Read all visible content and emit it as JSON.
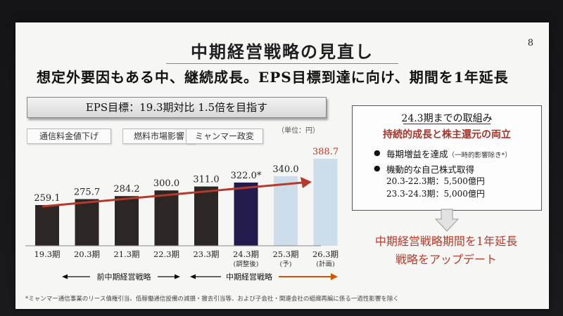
{
  "slide": {
    "title": "中期経営戦略の見直し",
    "page_number": "8",
    "subtitle": "想定外要因もある中、継続成長。EPS目標到達に向け、期間を1年延長",
    "eps_target": "EPS目標：19.3期対比 1.5倍を目指す",
    "factors": [
      "通信料金値下げ",
      "燃料市場影響",
      "ミャンマー政変"
    ],
    "unit": "（単位：円）",
    "period_labels": {
      "previous": "前中期経営戦略",
      "current": "中期経営戦略"
    },
    "right_box": {
      "heading": "24.3期までの取組み",
      "subheading": "持続的成長と株主還元の両立",
      "bullets": [
        {
          "text": "毎期増益を達成",
          "note": "（一時的影響除き*）"
        },
        {
          "text": "機動的な自己株式取得",
          "note": ""
        }
      ],
      "sub_items": [
        "20.3-22.3期：5,500億円",
        "23.3-24.3期：5,000億円"
      ]
    },
    "result_lines": [
      "中期経営戦略期間を1年延長",
      "戦略をアップデート"
    ],
    "footnote": "*ミャンマー通信事業のリース債権引当、低稼働通信設備の減損・撤去引当等、および子会社・関連会社の組織再編に係る一過性影響を除く"
  },
  "chart_data": {
    "type": "bar",
    "categories": [
      "19.3期",
      "20.3期",
      "21.3期",
      "22.3期",
      "23.3期",
      "24.3期",
      "25.3期",
      "26.3期"
    ],
    "category_notes": [
      "",
      "",
      "",
      "",
      "",
      "(調整後)",
      "(予)",
      "(計画)"
    ],
    "values": [
      259.1,
      275.7,
      284.2,
      300.0,
      311.0,
      322.0,
      340.0,
      388.7
    ],
    "value_labels": [
      "259.1",
      "275.7",
      "284.2",
      "300.0",
      "311.0",
      "322.0*",
      "340.0",
      "388.7"
    ],
    "bar_colors": [
      "#2c2724",
      "#2c2724",
      "#2c2724",
      "#2c2724",
      "#2c2724",
      "#231b4c",
      "#cdddeb",
      "#cdddeb"
    ],
    "label_colors": [
      "#222222",
      "#222222",
      "#222222",
      "#222222",
      "#222222",
      "#222222",
      "#222222",
      "#c0392b"
    ],
    "colors": {
      "trend_arrow": "#b5392c",
      "accent_red": "#b73a2a"
    },
    "ylim": [
      0,
      400
    ]
  }
}
